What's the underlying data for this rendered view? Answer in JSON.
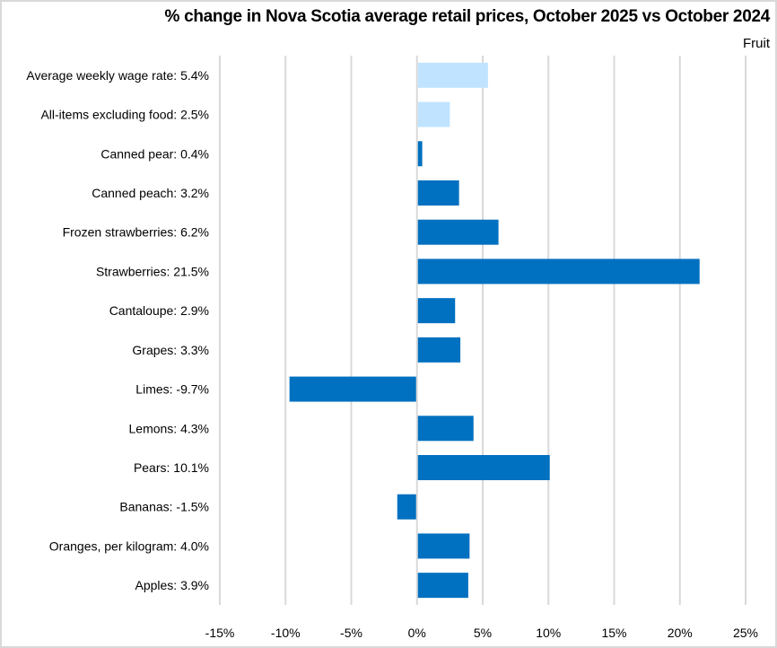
{
  "chart_data": {
    "type": "bar",
    "orientation": "horizontal",
    "title": "% change in Nova Scotia average retail prices, October 2025 vs October 2024",
    "subtitle": "Fruit",
    "xlabel": "",
    "ylabel": "",
    "xlim": [
      -15,
      25
    ],
    "xticks": [
      -15,
      -10,
      -5,
      0,
      5,
      10,
      15,
      20,
      25
    ],
    "xtick_labels": [
      "-15%",
      "-10%",
      "-5%",
      "0%",
      "5%",
      "10%",
      "15%",
      "20%",
      "25%"
    ],
    "grid": "vertical",
    "legend": "none",
    "categories": [
      "Average weekly wage rate: 5.4%",
      "All-items excluding food: 2.5%",
      "Canned pear: 0.4%",
      "Canned peach: 3.2%",
      "Frozen strawberries: 6.2%",
      "Strawberries: 21.5%",
      "Cantaloupe: 2.9%",
      "Grapes: 3.3%",
      "Limes: -9.7%",
      "Lemons: 4.3%",
      "Pears: 10.1%",
      "Bananas: -1.5%",
      "Oranges, per kilogram: 4.0%",
      "Apples: 3.9%"
    ],
    "values": [
      5.4,
      2.5,
      0.4,
      3.2,
      6.2,
      21.5,
      2.9,
      3.3,
      -9.7,
      4.3,
      10.1,
      -1.5,
      4.0,
      3.9
    ],
    "bar_kind": [
      "reference",
      "reference",
      "fruit",
      "fruit",
      "fruit",
      "fruit",
      "fruit",
      "fruit",
      "fruit",
      "fruit",
      "fruit",
      "fruit",
      "fruit",
      "fruit"
    ],
    "colors": {
      "fruit": "#0070c0",
      "reference": "#c0e4ff",
      "grid": "#d9d9d9"
    }
  }
}
